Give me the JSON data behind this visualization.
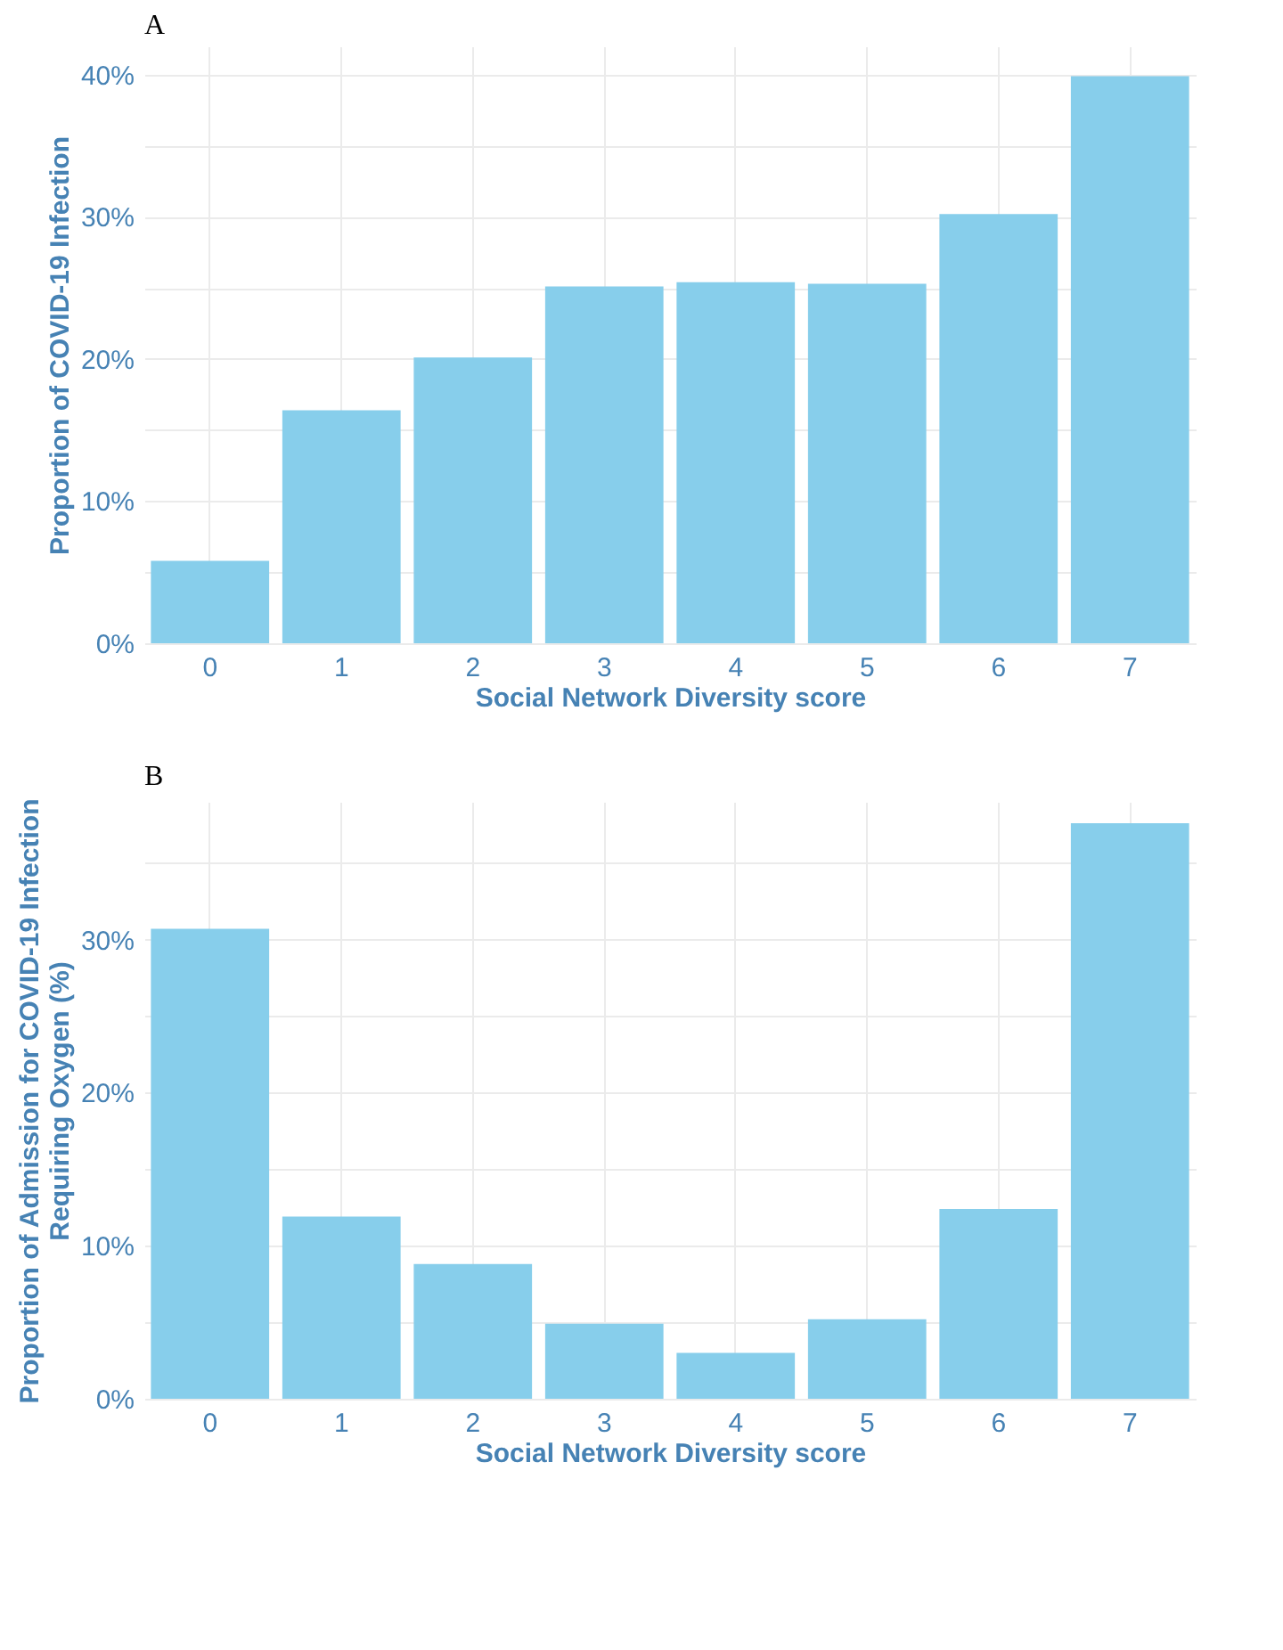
{
  "chart_data": [
    {
      "type": "bar",
      "title": "A",
      "categories": [
        "0",
        "1",
        "2",
        "3",
        "4",
        "5",
        "6",
        "7"
      ],
      "values": [
        5.8,
        16.4,
        20.1,
        25.1,
        25.4,
        25.3,
        30.2,
        39.9
      ],
      "color": "#87ceeb",
      "xlabel": "Social Network Diversity score",
      "ylabel": "Proportion of COVID-19 Infection",
      "ylim": [
        0,
        42
      ],
      "yticks": [
        {
          "value": 0,
          "label": "0%"
        },
        {
          "value": 5,
          "label": null
        },
        {
          "value": 10,
          "label": "10%"
        },
        {
          "value": 15,
          "label": null
        },
        {
          "value": 20,
          "label": "20%"
        },
        {
          "value": 25,
          "label": null
        },
        {
          "value": 30,
          "label": "30%"
        },
        {
          "value": 35,
          "label": null
        },
        {
          "value": 40,
          "label": "40%"
        }
      ],
      "grid": true
    },
    {
      "type": "bar",
      "title": "B",
      "categories": [
        "0",
        "1",
        "2",
        "3",
        "4",
        "5",
        "6",
        "7"
      ],
      "values": [
        30.7,
        11.9,
        8.8,
        4.9,
        3.0,
        5.2,
        12.4,
        37.6
      ],
      "color": "#87ceeb",
      "xlabel": "Social Network Diversity score",
      "ylabel": [
        "Proportion of Admission for COVID-19 Infection",
        "Requiring Oxygen (%)"
      ],
      "ylim": [
        0,
        39
      ],
      "yticks": [
        {
          "value": 0,
          "label": "0%"
        },
        {
          "value": 5,
          "label": null
        },
        {
          "value": 10,
          "label": "10%"
        },
        {
          "value": 15,
          "label": null
        },
        {
          "value": 20,
          "label": "20%"
        },
        {
          "value": 25,
          "label": null
        },
        {
          "value": 30,
          "label": "30%"
        },
        {
          "value": 35,
          "label": null
        }
      ],
      "grid": true
    }
  ]
}
